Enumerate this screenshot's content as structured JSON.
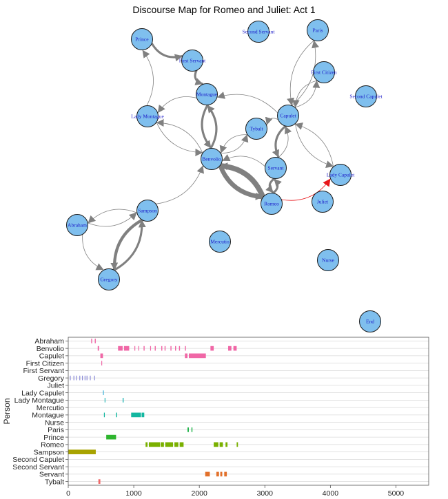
{
  "title": "Discourse Map for Romeo and Juliet: Act 1",
  "colors": {
    "node_fill": "#7fbfee",
    "node_stroke": "#1a1a1a",
    "edge": "#808080",
    "edge_highlight": "#e8161b",
    "label": "#1a1ac8"
  },
  "chart_data": [
    {
      "type": "network",
      "title": "Discourse Map for Romeo and Juliet: Act 1",
      "nodes": [
        {
          "id": "Prince",
          "label": "Prince"
        },
        {
          "id": "Second Servant",
          "label": "Second Servant"
        },
        {
          "id": "Paris",
          "label": "Paris"
        },
        {
          "id": "First Servant",
          "label": "First Servant"
        },
        {
          "id": "First Citizen",
          "label": "First Citizen"
        },
        {
          "id": "Second Capulet",
          "label": "Second Capulet"
        },
        {
          "id": "Montague",
          "label": "Montague"
        },
        {
          "id": "Lady Montague",
          "label": "Lady Montague"
        },
        {
          "id": "Capulet",
          "label": "Capulet"
        },
        {
          "id": "Tybalt",
          "label": "Tybalt"
        },
        {
          "id": "Benvolio",
          "label": "Benvolio"
        },
        {
          "id": "Servant",
          "label": "Servant"
        },
        {
          "id": "Lady Capulet",
          "label": "Lady Capulet"
        },
        {
          "id": "Romeo",
          "label": "Romeo"
        },
        {
          "id": "Juliet",
          "label": "Juliet"
        },
        {
          "id": "Sampson",
          "label": "Sampson"
        },
        {
          "id": "Abraham",
          "label": "Abraham"
        },
        {
          "id": "Mercutio",
          "label": "Mercutio"
        },
        {
          "id": "Nurse",
          "label": "Nurse"
        },
        {
          "id": "Gregory",
          "label": "Gregory"
        },
        {
          "id": "End",
          "label": "End"
        }
      ],
      "edges": [
        {
          "from": "Prince",
          "to": "First Servant",
          "weight": 3
        },
        {
          "from": "First Servant",
          "to": "Montague",
          "weight": 3
        },
        {
          "from": "Lady Montague",
          "to": "Prince",
          "weight": 1
        },
        {
          "from": "Montague",
          "to": "Lady Montague",
          "weight": 1
        },
        {
          "from": "Lady Montague",
          "to": "Benvolio",
          "weight": 1
        },
        {
          "from": "Benvolio",
          "to": "Lady Montague",
          "weight": 1
        },
        {
          "from": "Montague",
          "to": "Benvolio",
          "weight": 3
        },
        {
          "from": "Benvolio",
          "to": "Montague",
          "weight": 3
        },
        {
          "from": "Capulet",
          "to": "Montague",
          "weight": 1
        },
        {
          "from": "Capulet",
          "to": "Paris",
          "weight": 1
        },
        {
          "from": "Paris",
          "to": "Capulet",
          "weight": 1
        },
        {
          "from": "Capulet",
          "to": "First Citizen",
          "weight": 1
        },
        {
          "from": "First Citizen",
          "to": "Capulet",
          "weight": 1
        },
        {
          "from": "Capulet",
          "to": "Tybalt",
          "weight": 1
        },
        {
          "from": "Tybalt",
          "to": "Benvolio",
          "weight": 1
        },
        {
          "from": "Benvolio",
          "to": "Tybalt",
          "weight": 1
        },
        {
          "from": "Capulet",
          "to": "Servant",
          "weight": 3
        },
        {
          "from": "Servant",
          "to": "Capulet",
          "weight": 1
        },
        {
          "from": "Capulet",
          "to": "Lady Capulet",
          "weight": 1
        },
        {
          "from": "Lady Capulet",
          "to": "Capulet",
          "weight": 1
        },
        {
          "from": "Servant",
          "to": "Benvolio",
          "weight": 1
        },
        {
          "from": "Servant",
          "to": "Romeo",
          "weight": 3
        },
        {
          "from": "Romeo",
          "to": "Servant",
          "weight": 3
        },
        {
          "from": "Benvolio",
          "to": "Romeo",
          "weight": 6
        },
        {
          "from": "Romeo",
          "to": "Benvolio",
          "weight": 7
        },
        {
          "from": "Romeo",
          "to": "Lady Capulet",
          "weight": 1,
          "highlight": true
        },
        {
          "from": "Sampson",
          "to": "Benvolio",
          "weight": 1
        },
        {
          "from": "Sampson",
          "to": "Abraham",
          "weight": 1
        },
        {
          "from": "Abraham",
          "to": "Sampson",
          "weight": 1
        },
        {
          "from": "Abraham",
          "to": "Gregory",
          "weight": 1
        },
        {
          "from": "Sampson",
          "to": "Gregory",
          "weight": 4
        },
        {
          "from": "Gregory",
          "to": "Sampson",
          "weight": 3
        }
      ]
    },
    {
      "type": "timeline",
      "ylabel": "Person",
      "xlim": [
        0,
        5500
      ],
      "x_ticks": [
        0,
        1000,
        2000,
        3000,
        4000,
        5000
      ],
      "tick_labels": [
        "0",
        "1000",
        "2000",
        "3000",
        "4000",
        "5000"
      ],
      "categories": [
        "Abraham",
        "Benvolio",
        "Capulet",
        "First Citizen",
        "First Servant",
        "Gregory",
        "Juliet",
        "Lady Capulet",
        "Lady Montague",
        "Mercutio",
        "Montague",
        "Nurse",
        "Paris",
        "Prince",
        "Romeo",
        "Sampson",
        "Second Capulet",
        "Second Servant",
        "Servant",
        "Tybalt"
      ],
      "series": [
        {
          "category": "Abraham",
          "color": "#f067a6",
          "segments": [
            [
              350,
              365
            ],
            [
              405,
              420
            ]
          ]
        },
        {
          "category": "Benvolio",
          "color": "#f067a6",
          "segments": [
            [
              450,
              470
            ],
            [
              760,
              830
            ],
            [
              850,
              930
            ],
            [
              1010,
              1020
            ],
            [
              1070,
              1080
            ],
            [
              1150,
              1165
            ],
            [
              1250,
              1260
            ],
            [
              1320,
              1335
            ],
            [
              1420,
              1435
            ],
            [
              1470,
              1485
            ],
            [
              1560,
              1575
            ],
            [
              1630,
              1645
            ],
            [
              1690,
              1705
            ],
            [
              1780,
              1795
            ],
            [
              2170,
              2220
            ],
            [
              2440,
              2490
            ],
            [
              2520,
              2570
            ]
          ]
        },
        {
          "category": "Capulet",
          "color": "#f067a6",
          "segments": [
            [
              490,
              530
            ],
            [
              1780,
              1820
            ],
            [
              1840,
              2100
            ]
          ]
        },
        {
          "category": "First Citizen",
          "color": "#f067a6",
          "segments": [
            [
              505,
              515
            ]
          ]
        },
        {
          "category": "First Servant",
          "color": "#f067a6",
          "segments": []
        },
        {
          "category": "Gregory",
          "color": "#8c8cd8",
          "segments": [
            [
              25,
              35
            ],
            [
              80,
              90
            ],
            [
              120,
              130
            ],
            [
              170,
              180
            ],
            [
              210,
              220
            ],
            [
              250,
              260
            ],
            [
              280,
              290
            ],
            [
              330,
              340
            ],
            [
              395,
              405
            ]
          ]
        },
        {
          "category": "Juliet",
          "color": "#5aa0f0",
          "segments": []
        },
        {
          "category": "Lady Capulet",
          "color": "#3ab0d8",
          "segments": [
            [
              530,
              540
            ]
          ]
        },
        {
          "category": "Lady Montague",
          "color": "#2ab8b8",
          "segments": [
            [
              555,
              565
            ],
            [
              830,
              845
            ]
          ]
        },
        {
          "category": "Mercutio",
          "color": "#21b5a0",
          "segments": []
        },
        {
          "category": "Montague",
          "color": "#12b7a0",
          "segments": [
            [
              545,
              555
            ],
            [
              730,
              745
            ],
            [
              960,
              1110
            ],
            [
              1120,
              1160
            ]
          ]
        },
        {
          "category": "Nurse",
          "color": "#19b878",
          "segments": []
        },
        {
          "category": "Paris",
          "color": "#1fb34a",
          "segments": [
            [
              1820,
              1840
            ],
            [
              1880,
              1895
            ]
          ]
        },
        {
          "category": "Prince",
          "color": "#2eb52e",
          "segments": [
            [
              580,
              730
            ]
          ]
        },
        {
          "category": "Romeo",
          "color": "#7ab000",
          "segments": [
            [
              1180,
              1210
            ],
            [
              1230,
              1400
            ],
            [
              1410,
              1460
            ],
            [
              1480,
              1600
            ],
            [
              1620,
              1680
            ],
            [
              1700,
              1760
            ],
            [
              2220,
              2290
            ],
            [
              2310,
              2360
            ],
            [
              2400,
              2430
            ],
            [
              2570,
              2590
            ]
          ]
        },
        {
          "category": "Sampson",
          "color": "#a8a300",
          "segments": [
            [
              0,
              420
            ]
          ]
        },
        {
          "category": "Second Capulet",
          "color": "#d09000",
          "segments": []
        },
        {
          "category": "Second Servant",
          "color": "#e07a20",
          "segments": []
        },
        {
          "category": "Servant",
          "color": "#e2702a",
          "segments": [
            [
              2090,
              2160
            ],
            [
              2260,
              2300
            ],
            [
              2320,
              2350
            ],
            [
              2380,
              2420
            ]
          ]
        },
        {
          "category": "Tybalt",
          "color": "#f06868",
          "segments": [
            [
              460,
              490
            ]
          ]
        }
      ],
      "grid": true
    }
  ]
}
